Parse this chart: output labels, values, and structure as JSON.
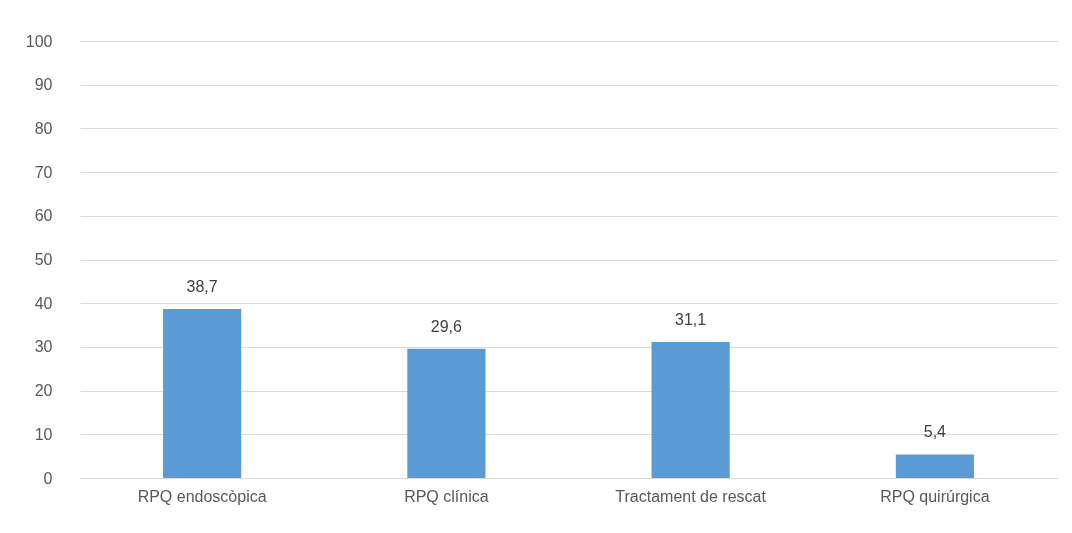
{
  "chart_data": {
    "type": "bar",
    "categories": [
      "RPQ endoscòpica",
      "RPQ clínica",
      "Tractament de rescat",
      "RPQ quirúrgica"
    ],
    "values": [
      38.7,
      29.6,
      31.1,
      5.4
    ],
    "value_labels": [
      "38,7",
      "29,6",
      "31,1",
      "5,4"
    ],
    "color": "#5b9bd5",
    "ylim": [
      0,
      100
    ],
    "yticks": [
      0,
      10,
      20,
      30,
      40,
      50,
      60,
      70,
      80,
      90,
      100
    ],
    "grid": true
  }
}
